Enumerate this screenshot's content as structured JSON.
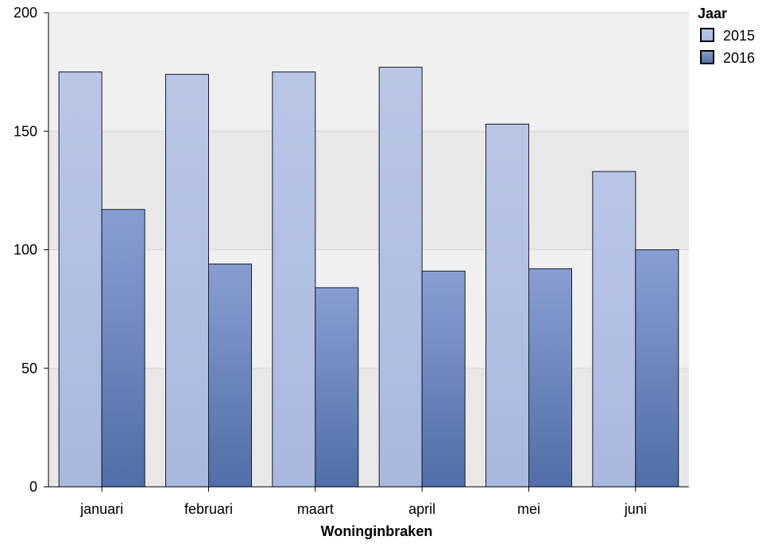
{
  "chart_data": {
    "type": "bar",
    "title": "",
    "xlabel": "Woninginbraken",
    "ylabel": "",
    "categories": [
      "januari",
      "februari",
      "maart",
      "april",
      "mei",
      "juni"
    ],
    "series": [
      {
        "name": "2015",
        "values": [
          175,
          174,
          175,
          177,
          153,
          133
        ],
        "color": "#b6c3e4"
      },
      {
        "name": "2016",
        "values": [
          117,
          94,
          84,
          91,
          92,
          100
        ],
        "color": "#6a85bd"
      }
    ],
    "ylim": [
      0,
      200
    ],
    "yticks": [
      0,
      50,
      100,
      150,
      200
    ],
    "legend": {
      "title": "Jaar",
      "position": "top-right"
    },
    "grid": true,
    "band_colors": [
      "#e8e8e8",
      "#f0f0f0"
    ]
  }
}
